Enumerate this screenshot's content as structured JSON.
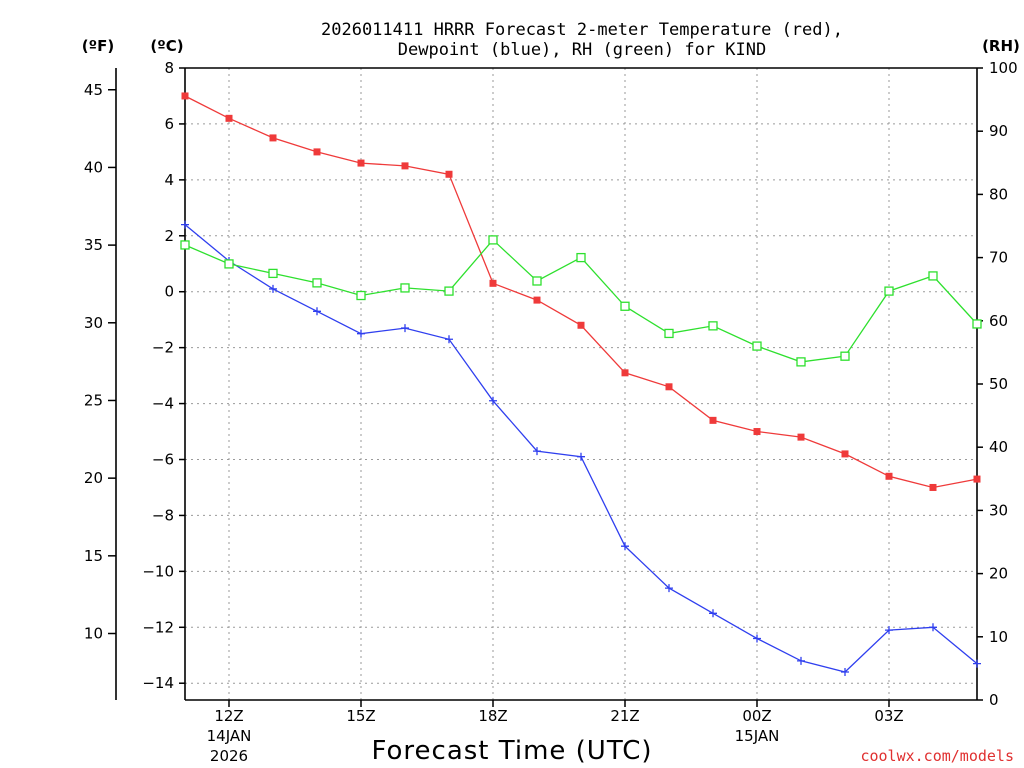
{
  "chart_data": {
    "type": "line",
    "title_line1": "2026011411 HRRR Forecast 2-meter Temperature (red),",
    "title_line2": "Dewpoint (blue), RH (green) for KIND",
    "xlabel": "Forecast Time (UTC)",
    "credit": "coolwx.com/models",
    "units": {
      "fahrenheit": "(ºF)",
      "celsius": "(ºC)",
      "rh": "(RH)"
    },
    "x_hours": [
      11,
      12,
      13,
      14,
      15,
      16,
      17,
      18,
      19,
      20,
      21,
      22,
      23,
      24,
      25,
      26,
      27,
      28,
      29
    ],
    "x_ticks": [
      {
        "hour": 12,
        "label": "12Z",
        "date": "14JAN",
        "year": "2026"
      },
      {
        "hour": 15,
        "label": "15Z",
        "date": "",
        "year": ""
      },
      {
        "hour": 18,
        "label": "18Z",
        "date": "",
        "year": ""
      },
      {
        "hour": 21,
        "label": "21Z",
        "date": "",
        "year": ""
      },
      {
        "hour": 24,
        "label": "00Z",
        "date": "15JAN",
        "year": ""
      },
      {
        "hour": 27,
        "label": "03Z",
        "date": "",
        "year": ""
      }
    ],
    "ylim_c": [
      -14.6,
      8
    ],
    "ylim_rh": [
      0,
      100
    ],
    "y_ticks_c": [
      "8",
      "6",
      "4",
      "2",
      "0",
      "−2",
      "−4",
      "−6",
      "−8",
      "−10",
      "−12",
      "−14"
    ],
    "y_ticks_f": [
      "45",
      "40",
      "35",
      "30",
      "25",
      "20",
      "15",
      "10"
    ],
    "y_ticks_rh": [
      "100",
      "90",
      "80",
      "70",
      "60",
      "50",
      "40",
      "30",
      "20",
      "10",
      "0"
    ],
    "series": [
      {
        "name": "2-meter Temperature",
        "unit": "C",
        "color": "#ef3a3a",
        "marker": "filled-square",
        "values": [
          7.0,
          6.2,
          5.5,
          5.0,
          4.6,
          4.5,
          4.2,
          0.3,
          -0.3,
          -1.2,
          -2.9,
          -3.4,
          -4.6,
          -5.0,
          -5.2,
          -5.8,
          -6.6,
          -7.0,
          -6.7
        ]
      },
      {
        "name": "Dewpoint",
        "unit": "C",
        "color": "#2f3fef",
        "marker": "plus",
        "values": [
          2.4,
          1.1,
          0.1,
          -0.7,
          -1.5,
          -1.3,
          -1.7,
          -3.9,
          -5.7,
          -5.9,
          -9.1,
          -10.6,
          -11.5,
          -12.4,
          -13.2,
          -13.6,
          -12.1,
          -12.0,
          -13.3
        ]
      },
      {
        "name": "RH",
        "unit": "%",
        "color": "#2ee02e",
        "marker": "open-square",
        "values": [
          72,
          69,
          67.5,
          66,
          64,
          65.2,
          64.7,
          72.8,
          66.3,
          70,
          62.3,
          58,
          59.2,
          56,
          53.5,
          54.4,
          64.7,
          67.1,
          59.5
        ]
      }
    ]
  }
}
